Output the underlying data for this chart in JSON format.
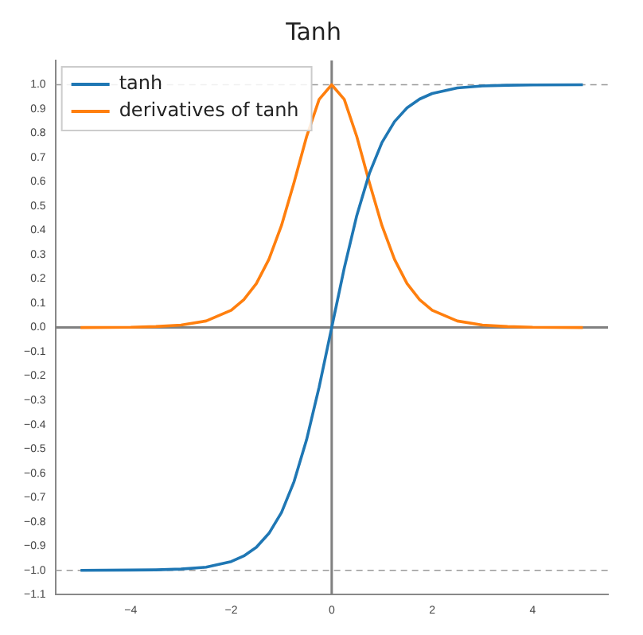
{
  "chart_data": {
    "type": "line",
    "title": "Tanh",
    "x": [
      -5,
      -4,
      -3.5,
      -3,
      -2.5,
      -2,
      -1.75,
      -1.5,
      -1.25,
      -1,
      -0.75,
      -0.5,
      -0.25,
      0,
      0.25,
      0.5,
      0.75,
      1,
      1.25,
      1.5,
      1.75,
      2,
      2.5,
      3,
      3.5,
      4,
      5
    ],
    "series": [
      {
        "name": "tanh",
        "color": "#1f77b4",
        "values": [
          -1.0,
          -0.999,
          -0.998,
          -0.995,
          -0.987,
          -0.964,
          -0.941,
          -0.905,
          -0.848,
          -0.762,
          -0.635,
          -0.462,
          -0.245,
          0,
          0.245,
          0.462,
          0.635,
          0.762,
          0.848,
          0.905,
          0.941,
          0.964,
          0.987,
          0.995,
          0.998,
          0.999,
          1.0
        ]
      },
      {
        "name": "derivatives of tanh",
        "color": "#ff7f0e",
        "values": [
          0,
          0.001,
          0.004,
          0.01,
          0.027,
          0.071,
          0.115,
          0.181,
          0.281,
          0.42,
          0.597,
          0.786,
          0.94,
          1,
          0.94,
          0.786,
          0.597,
          0.42,
          0.281,
          0.181,
          0.115,
          0.071,
          0.027,
          0.01,
          0.004,
          0.001,
          0
        ]
      }
    ],
    "xlim": [
      -5.5,
      5.5
    ],
    "xticks": [
      -4,
      -2,
      0,
      2,
      4
    ],
    "ylim": [
      -1.1,
      1.1
    ],
    "yticks": [
      -1.1,
      {
        "value": -1,
        "label": "−1.0"
      },
      -0.9,
      -0.8,
      -0.7,
      -0.6,
      -0.5,
      -0.4,
      -0.3,
      -0.2,
      -0.1,
      {
        "value": 0,
        "label": "0.0"
      },
      0.1,
      0.2,
      0.3,
      0.4,
      0.5,
      0.6,
      0.7,
      0.8,
      0.9,
      {
        "value": 1,
        "label": "1.0"
      }
    ],
    "ref_lines": [
      {
        "axis": "y",
        "value": 1.0,
        "color": "#999999",
        "line_style": "dashed"
      },
      {
        "axis": "y",
        "value": -1.0,
        "color": "#999999",
        "line_style": "dashed"
      },
      {
        "axis": "y",
        "value": 0,
        "color": "#808080",
        "line_style": "solid"
      },
      {
        "axis": "x",
        "value": 0,
        "color": "#808080",
        "line_style": "solid"
      }
    ],
    "legend": "top left",
    "grid": false,
    "marker": "none",
    "line_style": "solid"
  }
}
